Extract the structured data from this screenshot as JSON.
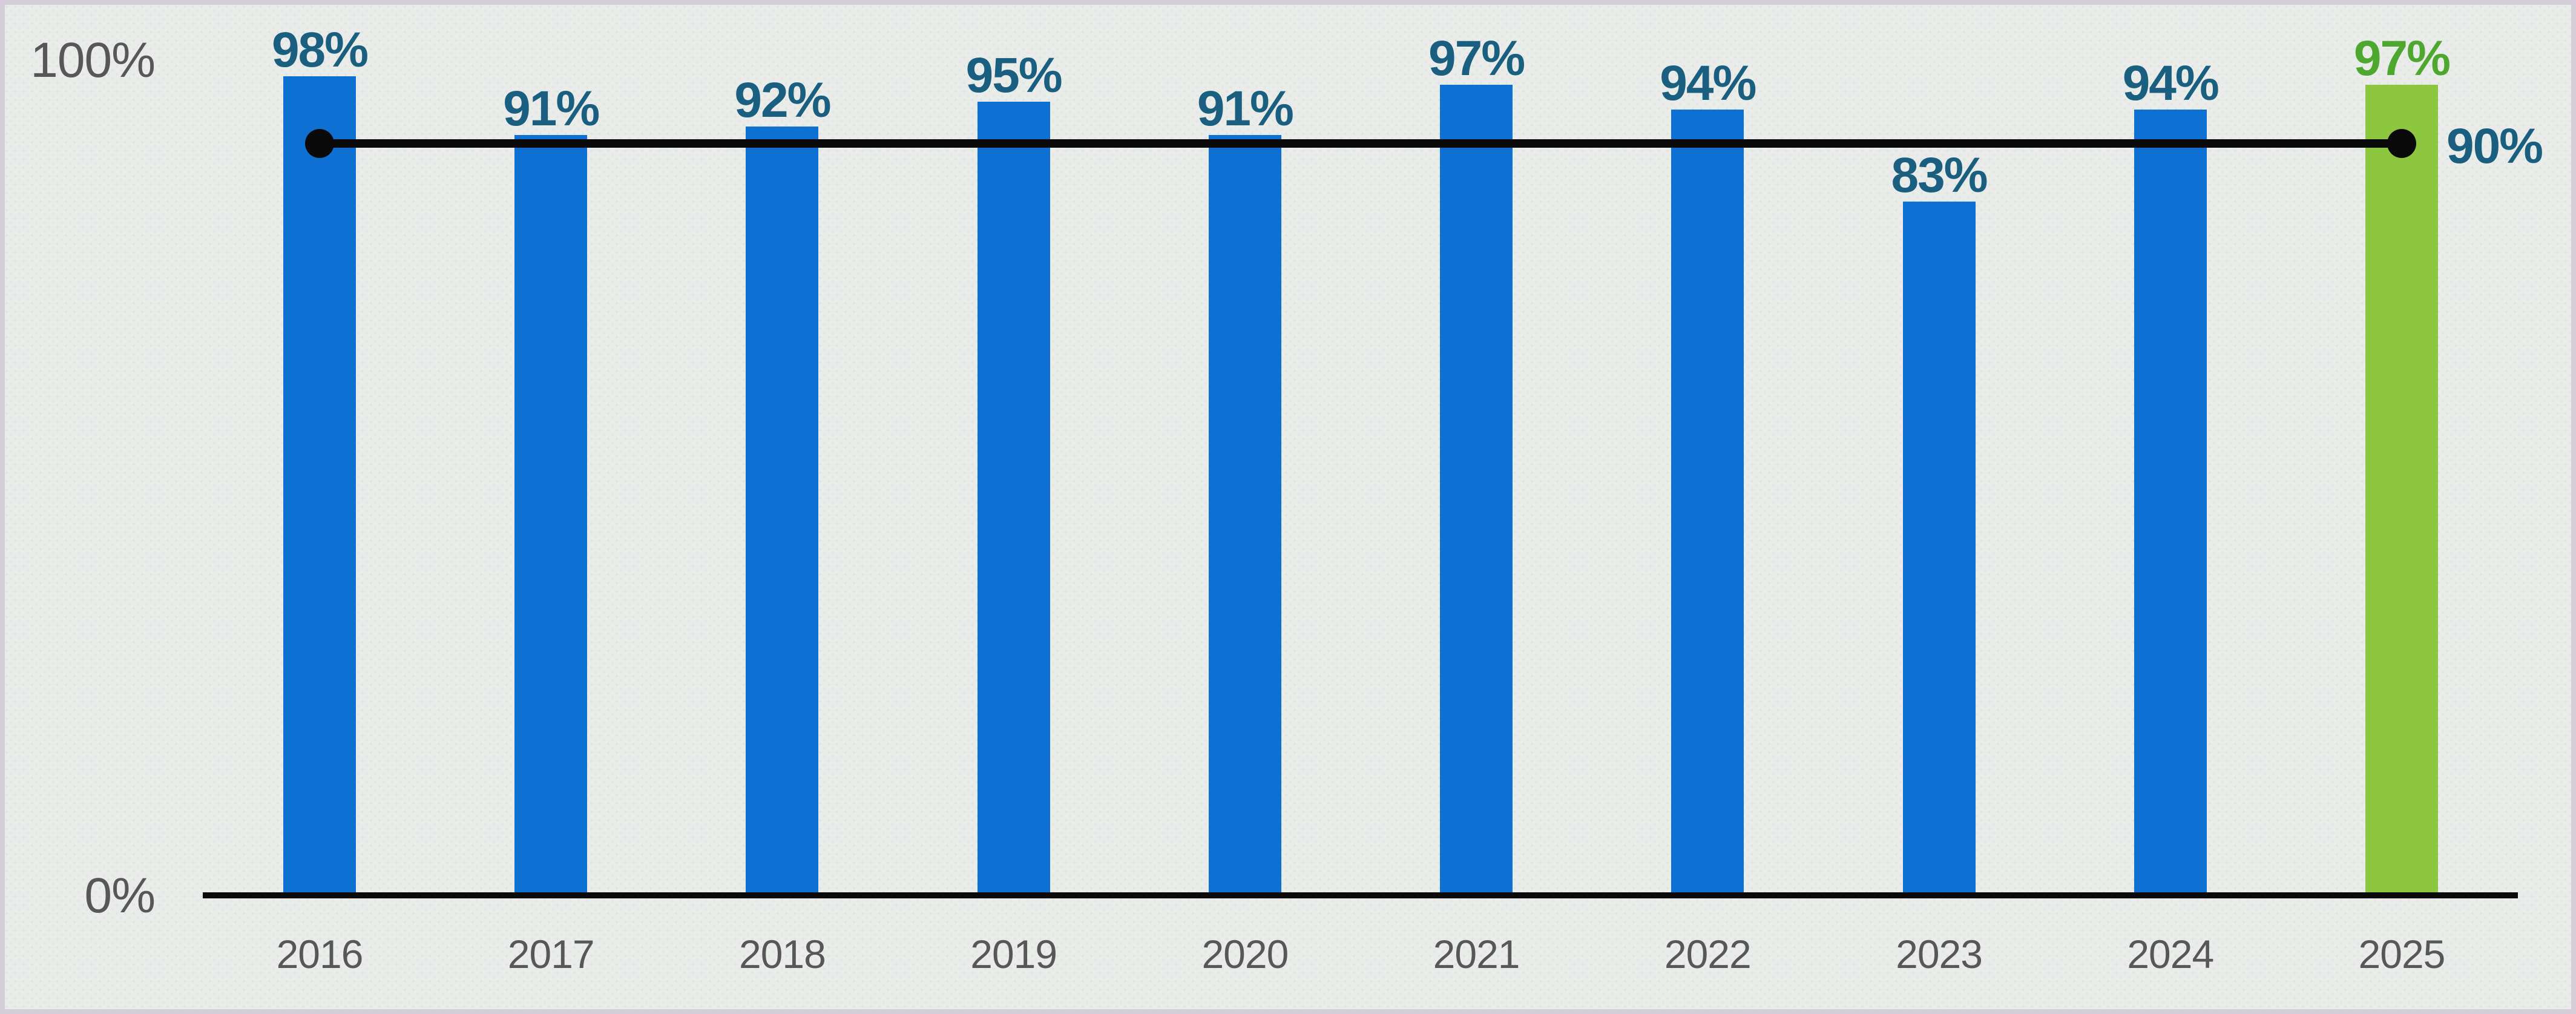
{
  "chart_data": {
    "type": "bar",
    "categories": [
      "2016",
      "2017",
      "2018",
      "2019",
      "2020",
      "2021",
      "2022",
      "2023",
      "2024",
      "2025"
    ],
    "values": [
      98,
      91,
      92,
      95,
      91,
      97,
      94,
      83,
      94,
      97
    ],
    "value_labels": [
      "98%",
      "91%",
      "92%",
      "95%",
      "91%",
      "97%",
      "94%",
      "83%",
      "94%",
      "97%"
    ],
    "y_ticks": [
      "100%",
      "0%"
    ],
    "ylim": [
      0,
      100
    ],
    "grid": "off",
    "legend": "none",
    "highlight_category": "2025",
    "target_line": {
      "value": 90,
      "label": "90%",
      "from_category": "2016",
      "to_category": "2025"
    },
    "colors": {
      "bar_blue": "#0e70d2",
      "bar_green": "#8dc63f",
      "value_label_blue": "#1a5f80",
      "value_label_green": "#4ea72e",
      "axis_text_gray": "#575757",
      "target_line_black": "#0a0a0a"
    }
  }
}
